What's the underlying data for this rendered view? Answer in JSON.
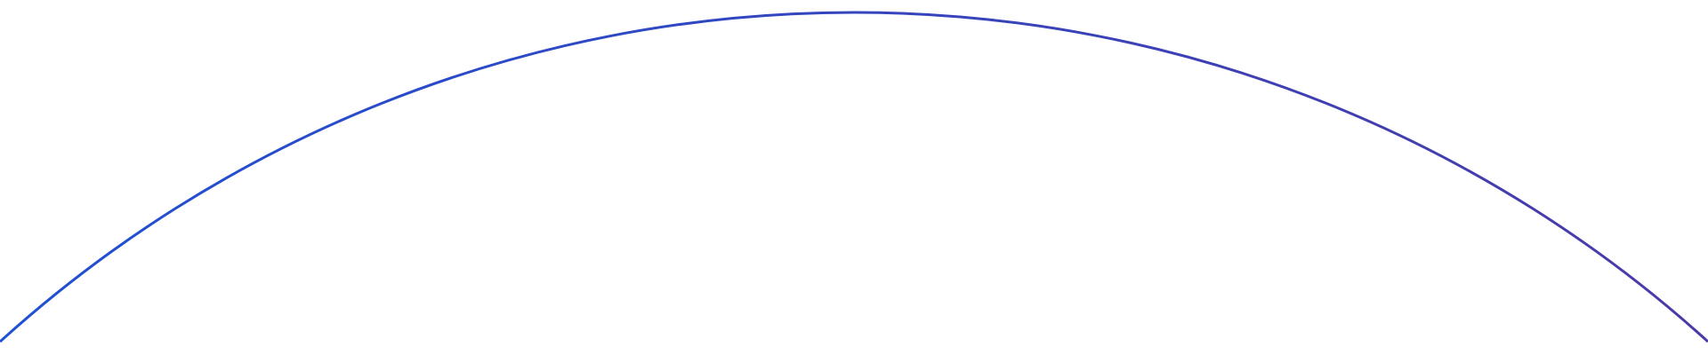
{
  "arc": {
    "color_start": "#1f50d4",
    "color_end": "#4a3aa8"
  }
}
